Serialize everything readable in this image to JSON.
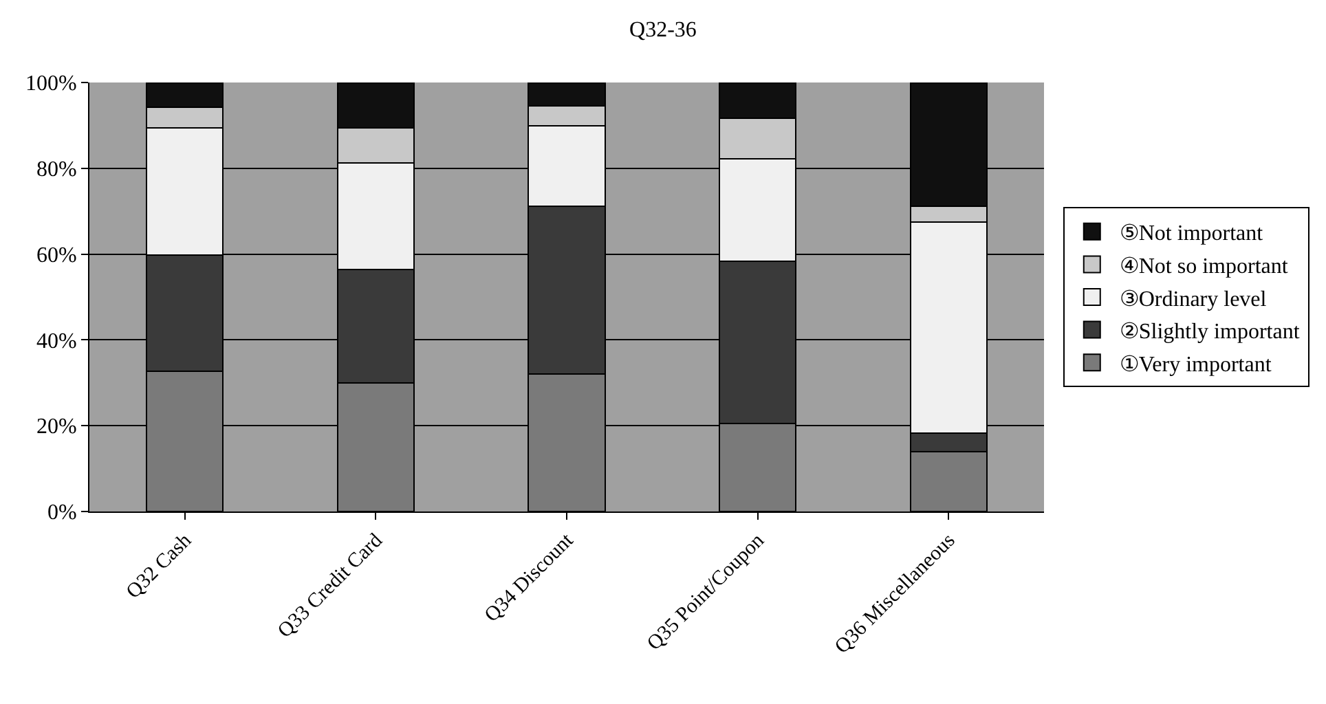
{
  "chart_data": {
    "type": "bar",
    "stacked": true,
    "title": "Q32-36",
    "categories": [
      "Q32 Cash",
      "Q33 Credit Card",
      "Q34 Discount",
      "Q35 Point/Coupon",
      "Q36 Miscellaneous"
    ],
    "series": [
      {
        "name": "①Very important",
        "color": "#7a7a7a",
        "values": [
          32.7,
          30.0,
          32.1,
          20.5,
          14.0
        ]
      },
      {
        "name": "②Slightly important",
        "color": "#3a3a3a",
        "values": [
          27.1,
          26.4,
          39.1,
          37.8,
          4.3
        ]
      },
      {
        "name": "③Ordinary level",
        "color": "#f0f0f0",
        "values": [
          29.7,
          24.8,
          18.7,
          23.9,
          49.1
        ]
      },
      {
        "name": "④Not so important",
        "color": "#c8c8c8",
        "values": [
          4.7,
          8.2,
          4.7,
          9.4,
          3.8
        ]
      },
      {
        "name": "⑤Not important",
        "color": "#101010",
        "values": [
          5.8,
          10.6,
          5.4,
          8.4,
          28.8
        ]
      }
    ],
    "ylim": [
      0,
      100
    ],
    "yticks": [
      {
        "value": 0,
        "label": "0%"
      },
      {
        "value": 20,
        "label": "20%"
      },
      {
        "value": 40,
        "label": "40%"
      },
      {
        "value": 60,
        "label": "60%"
      },
      {
        "value": 80,
        "label": "80%"
      },
      {
        "value": 100,
        "label": "100%"
      }
    ],
    "grid": "y",
    "legend": "right"
  }
}
